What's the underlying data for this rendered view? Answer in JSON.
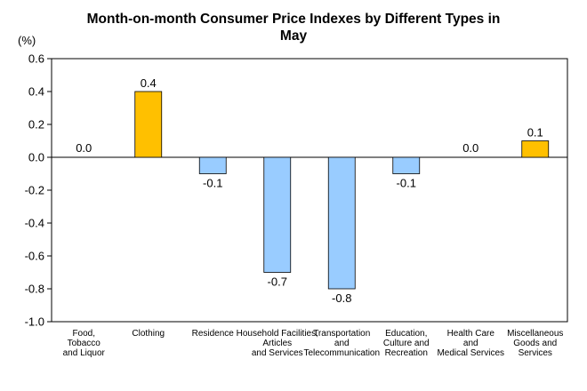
{
  "colors": {
    "positive": "#FFC000",
    "negative": "#99CCFF",
    "bar_stroke": "#000000",
    "axis": "#000000"
  },
  "chart_data": {
    "type": "bar",
    "title_lines": [
      "Month-on-month Consumer Price Indexes by Different Types in",
      "May"
    ],
    "unit_label": "(%)",
    "categories": [
      [
        "Food,",
        "Tobacco",
        "and Liquor"
      ],
      [
        "Clothing"
      ],
      [
        "Residence"
      ],
      [
        "Household Facilities,",
        "Articles",
        "and Services"
      ],
      [
        "Transportation",
        "and",
        "Telecommunication"
      ],
      [
        "Education,",
        "Culture and",
        "Recreation"
      ],
      [
        "Health Care",
        "and",
        "Medical Services"
      ],
      [
        "Miscellaneous",
        "Goods and",
        "Services"
      ]
    ],
    "values": [
      0.0,
      0.4,
      -0.1,
      -0.7,
      -0.8,
      -0.1,
      0.0,
      0.1
    ],
    "data_labels": [
      "0.0",
      "0.4",
      "-0.1",
      "-0.7",
      "-0.8",
      "-0.1",
      "0.0",
      "0.1"
    ],
    "ylim": [
      -1.0,
      0.6
    ],
    "yticks": [
      0.6,
      0.4,
      0.2,
      0.0,
      -0.2,
      -0.4,
      -0.6,
      -0.8,
      -1.0
    ],
    "ytick_labels": [
      "0.6",
      "0.4",
      "0.2",
      "0.0",
      "-0.2",
      "-0.4",
      "-0.6",
      "-0.8",
      "-1.0"
    ],
    "grid": false,
    "legend": "none"
  }
}
